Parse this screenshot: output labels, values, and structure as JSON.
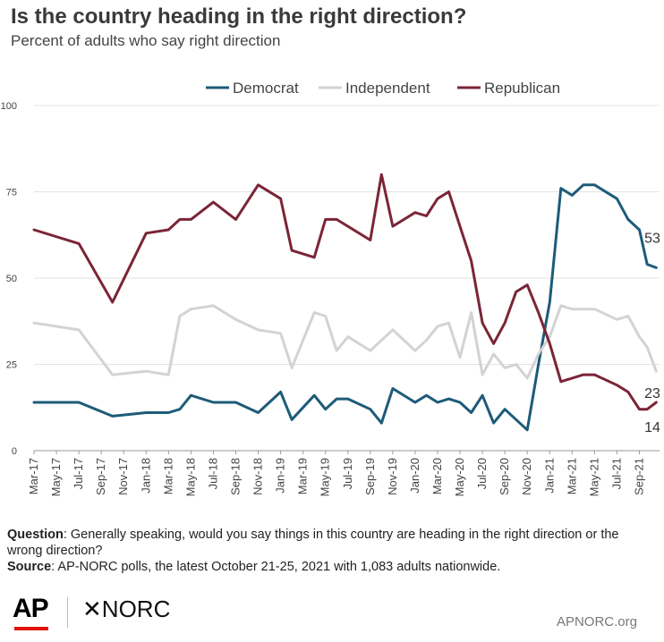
{
  "header": {
    "title": "Is the country heading in the right direction?",
    "subtitle": "Percent of adults who say right direction"
  },
  "chart_data": {
    "type": "line",
    "ylim": [
      0,
      100
    ],
    "yticks": [
      0,
      25,
      50,
      75,
      100
    ],
    "x_tick_labels": [
      "Mar-17",
      "May-17",
      "Jul-17",
      "Sep-17",
      "Nov-17",
      "Jan-18",
      "Mar-18",
      "May-18",
      "Jul-18",
      "Sep-18",
      "Nov-18",
      "Jan-19",
      "Mar-19",
      "May-19",
      "Jul-19",
      "Sep-19",
      "Nov-19",
      "Jan-20",
      "Mar-20",
      "May-20",
      "Jul-20",
      "Sep-20",
      "Nov-20",
      "Jan-21",
      "Mar-21",
      "May-21",
      "Jul-21",
      "Sep-21"
    ],
    "x_range": [
      0,
      55
    ],
    "legend_position": "top-center",
    "grid": "horizontal",
    "series": [
      {
        "name": "Democrat",
        "color": "#1d5b79",
        "end_label": "53",
        "points": [
          [
            0,
            14
          ],
          [
            4,
            14
          ],
          [
            7,
            10
          ],
          [
            10,
            11
          ],
          [
            12,
            11
          ],
          [
            13,
            12
          ],
          [
            14,
            16
          ],
          [
            16,
            14
          ],
          [
            18,
            14
          ],
          [
            20,
            11
          ],
          [
            22,
            17
          ],
          [
            23,
            9
          ],
          [
            25,
            16
          ],
          [
            26,
            12
          ],
          [
            27,
            15
          ],
          [
            28,
            15
          ],
          [
            30,
            12
          ],
          [
            31,
            8
          ],
          [
            32,
            18
          ],
          [
            34,
            14
          ],
          [
            35,
            16
          ],
          [
            36,
            14
          ],
          [
            37,
            15
          ],
          [
            38,
            14
          ],
          [
            39,
            11
          ],
          [
            40,
            16
          ],
          [
            41,
            8
          ],
          [
            42,
            12
          ],
          [
            44,
            6
          ],
          [
            45,
            25
          ],
          [
            46,
            43
          ],
          [
            47,
            76
          ],
          [
            48,
            74
          ],
          [
            49,
            77
          ],
          [
            50,
            77
          ],
          [
            52,
            73
          ],
          [
            53,
            67
          ],
          [
            54,
            64
          ],
          [
            54.7,
            54
          ],
          [
            55.5,
            53
          ]
        ]
      },
      {
        "name": "Independent",
        "color": "#d3d3d3",
        "end_label": "23",
        "points": [
          [
            0,
            37
          ],
          [
            4,
            35
          ],
          [
            7,
            22
          ],
          [
            10,
            23
          ],
          [
            12,
            22
          ],
          [
            13,
            39
          ],
          [
            14,
            41
          ],
          [
            16,
            42
          ],
          [
            18,
            38
          ],
          [
            20,
            35
          ],
          [
            22,
            34
          ],
          [
            23,
            24
          ],
          [
            25,
            40
          ],
          [
            26,
            39
          ],
          [
            27,
            29
          ],
          [
            28,
            33
          ],
          [
            30,
            29
          ],
          [
            32,
            35
          ],
          [
            34,
            29
          ],
          [
            35,
            32
          ],
          [
            36,
            36
          ],
          [
            37,
            37
          ],
          [
            38,
            27
          ],
          [
            39,
            40
          ],
          [
            40,
            22
          ],
          [
            41,
            28
          ],
          [
            42,
            24
          ],
          [
            43,
            25
          ],
          [
            44,
            21
          ],
          [
            45,
            28
          ],
          [
            46,
            33
          ],
          [
            47,
            42
          ],
          [
            48,
            41
          ],
          [
            50,
            41
          ],
          [
            52,
            38
          ],
          [
            53,
            39
          ],
          [
            54,
            33
          ],
          [
            54.7,
            30
          ],
          [
            55.5,
            23
          ]
        ]
      },
      {
        "name": "Republican",
        "color": "#7b2537",
        "end_label": "14",
        "points": [
          [
            0,
            64
          ],
          [
            4,
            60
          ],
          [
            7,
            43
          ],
          [
            10,
            63
          ],
          [
            12,
            64
          ],
          [
            13,
            67
          ],
          [
            14,
            67
          ],
          [
            16,
            72
          ],
          [
            18,
            67
          ],
          [
            20,
            77
          ],
          [
            22,
            73
          ],
          [
            23,
            58
          ],
          [
            25,
            56
          ],
          [
            26,
            67
          ],
          [
            27,
            67
          ],
          [
            30,
            61
          ],
          [
            31,
            80
          ],
          [
            32,
            65
          ],
          [
            34,
            69
          ],
          [
            35,
            68
          ],
          [
            36,
            73
          ],
          [
            37,
            75
          ],
          [
            38,
            65
          ],
          [
            39,
            55
          ],
          [
            40,
            37
          ],
          [
            41,
            31
          ],
          [
            42,
            37
          ],
          [
            43,
            46
          ],
          [
            44,
            48
          ],
          [
            45,
            40
          ],
          [
            46,
            31
          ],
          [
            47,
            20
          ],
          [
            49,
            22
          ],
          [
            50,
            22
          ],
          [
            52,
            19
          ],
          [
            53,
            17
          ],
          [
            54,
            12
          ],
          [
            54.7,
            12
          ],
          [
            55.5,
            14
          ]
        ]
      }
    ]
  },
  "footer": {
    "question_label": "Question",
    "question_text": ": Generally speaking, would you say things in this country are heading in the right direction or the wrong direction?",
    "source_label": "Source",
    "source_text": ": AP-NORC polls, the latest October 21-25, 2021 with 1,083 adults nationwide."
  },
  "branding": {
    "ap_logo": "AP",
    "norc_logo": "NORC",
    "norc_glyph": "✕",
    "site": "APNORC.org",
    "ap_accent_color": "#e3120b"
  }
}
